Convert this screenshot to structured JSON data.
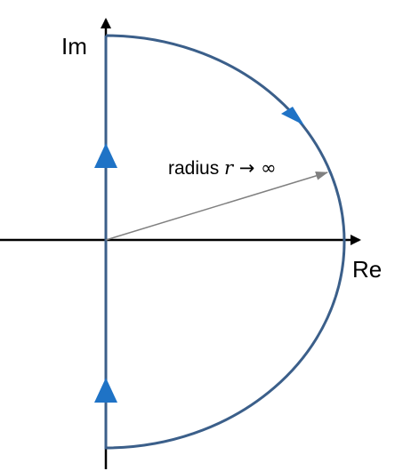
{
  "axes": {
    "imaginary_label": "Im",
    "real_label": "Re",
    "axis_color": "#000000"
  },
  "contour": {
    "color": "#3b5f8a",
    "arrow_color": "#1f73c6",
    "radius_label": {
      "prefix": "radius ",
      "variable": "r",
      "relation": " → ∞"
    },
    "radius_line_color": "#808080"
  }
}
